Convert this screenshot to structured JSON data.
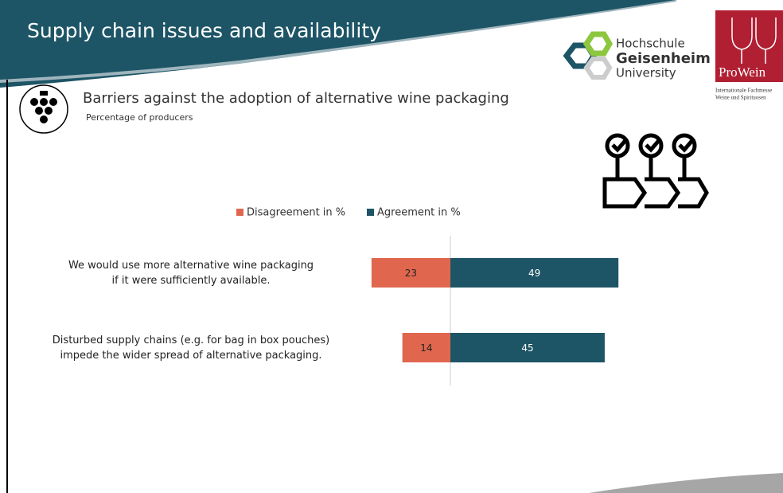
{
  "header": {
    "title": "Supply chain issues and availability"
  },
  "logos": {
    "school": [
      "Hochschule",
      "Geisenheim",
      "University"
    ],
    "fair": "ProWein",
    "fair_sub": [
      "Internationale Fachmesse",
      "Weine und Spirituosen"
    ]
  },
  "chart_data": {
    "type": "bar",
    "title": "Barriers against the adoption of alternative wine packaging",
    "subtitle": "Percentage of producers",
    "categories": [
      [
        "We would use more alternative wine packaging",
        "if it were sufficiently available."
      ],
      [
        "Disturbed supply chains (e.g. for bag in box pouches)",
        "impede the wider spread of alternative packaging."
      ]
    ],
    "series": [
      {
        "name": "Disagreement in %",
        "color": "#e0674e",
        "values": [
          23,
          14
        ]
      },
      {
        "name": "Agreement in %",
        "color": "#1d5566",
        "values": [
          49,
          45
        ]
      }
    ],
    "legend": "top"
  }
}
